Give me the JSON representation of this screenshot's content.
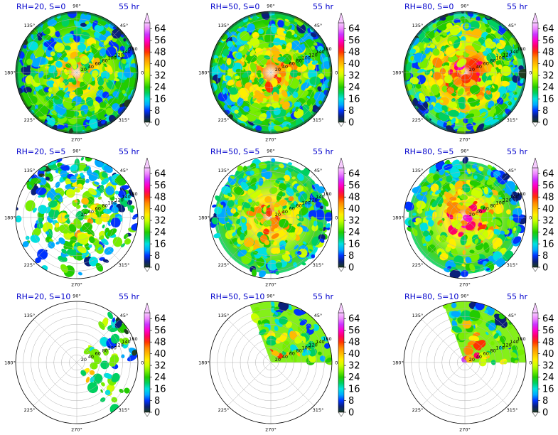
{
  "chart_data": {
    "type": "heatmap",
    "projection": "polar",
    "grid": true,
    "time_label": "55 hr",
    "angle_labels": [
      "90°",
      "45°",
      "0°",
      "315°",
      "270°",
      "225°",
      "180°",
      "135°"
    ],
    "radial_labels": [
      "20",
      "40",
      "60",
      "80",
      "100",
      "120",
      "140",
      "160"
    ],
    "colorbar": {
      "ticks": [
        "0",
        "8",
        "16",
        "24",
        "32",
        "40",
        "48",
        "56",
        "64"
      ],
      "range": [
        0,
        68
      ],
      "extend": "both",
      "colors": [
        "#1f3d1f",
        "#0a1f7a",
        "#0033ff",
        "#00aaff",
        "#00e0e0",
        "#00d060",
        "#22cc00",
        "#77ee00",
        "#ccff00",
        "#ffee00",
        "#ffbb00",
        "#ff8800",
        "#ff3300",
        "#ff0066",
        "#ff00cc",
        "#cc33ff",
        "#ee88ff",
        "#f7ccff"
      ]
    },
    "panels": [
      {
        "title": "RH=20, S=0",
        "rh": 20,
        "s": 0,
        "coverage": "full ring with sparse eye",
        "show_radial_labels": true
      },
      {
        "title": "RH=50, S=0",
        "rh": 50,
        "s": 0,
        "coverage": "full, eye open",
        "show_radial_labels": true
      },
      {
        "title": "RH=80, S=0",
        "rh": 80,
        "s": 0,
        "coverage": "full, intense core",
        "show_radial_labels": true
      },
      {
        "title": "RH=20, S=5",
        "rh": 20,
        "s": 5,
        "coverage": "partial",
        "show_radial_labels": true
      },
      {
        "title": "RH=50, S=5",
        "rh": 50,
        "s": 5,
        "coverage": "mostly full",
        "show_radial_labels": true
      },
      {
        "title": "RH=80, S=5",
        "rh": 80,
        "s": 5,
        "coverage": "mostly full",
        "show_radial_labels": true
      },
      {
        "title": "RH=20, S=10",
        "rh": 20,
        "s": 10,
        "coverage": "sparse, east",
        "show_radial_labels": true
      },
      {
        "title": "RH=50, S=10",
        "rh": 50,
        "s": 10,
        "coverage": "north-east quadrant",
        "show_radial_labels": true
      },
      {
        "title": "RH=80, S=10",
        "rh": 80,
        "s": 10,
        "coverage": "north-east quadrant",
        "show_radial_labels": true
      }
    ]
  }
}
